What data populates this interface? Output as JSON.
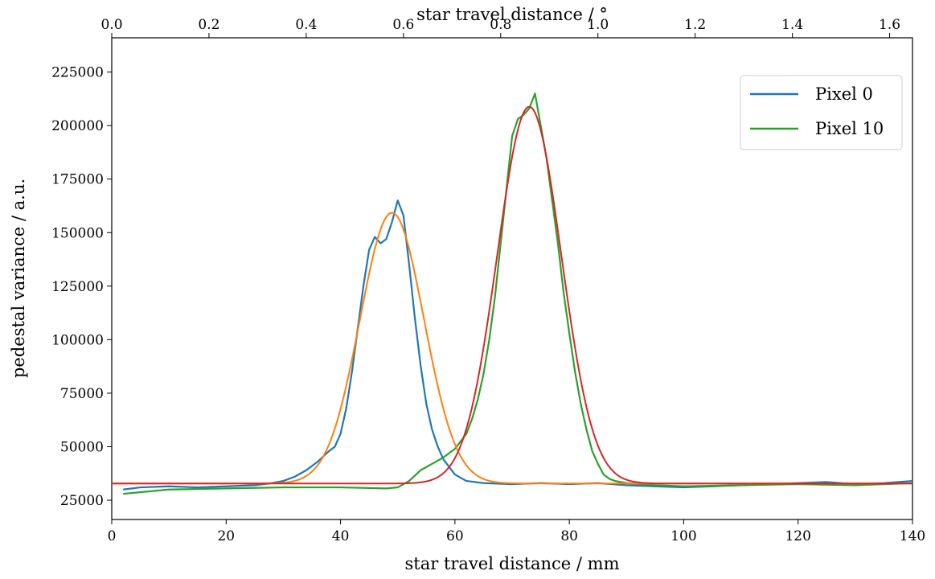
{
  "chart_data": {
    "type": "line",
    "xlabel": "star travel distance / mm",
    "x2label": "star travel distance / °",
    "ylabel": "pedestal variance / a.u.",
    "xlim": [
      0,
      140
    ],
    "x2lim": [
      0,
      1.647
    ],
    "ylim": [
      16000,
      241000
    ],
    "x_ticks": [
      0,
      20,
      40,
      60,
      80,
      100,
      120,
      140
    ],
    "x2_ticks": [
      0.0,
      0.2,
      0.4,
      0.6,
      0.8,
      1.0,
      1.2,
      1.4,
      1.6
    ],
    "y_ticks": [
      25000,
      50000,
      75000,
      100000,
      125000,
      150000,
      175000,
      200000,
      225000
    ],
    "x_tick_labels": [
      "0",
      "20",
      "40",
      "60",
      "80",
      "100",
      "120",
      "140"
    ],
    "x2_tick_labels": [
      "0.0",
      "0.2",
      "0.4",
      "0.6",
      "0.8",
      "1.0",
      "1.2",
      "1.4",
      "1.6"
    ],
    "y_tick_labels": [
      "25000",
      "50000",
      "75000",
      "100000",
      "125000",
      "150000",
      "175000",
      "200000",
      "225000"
    ],
    "grid": false,
    "legend_position": "top-right",
    "series": [
      {
        "name": "Pixel 0",
        "color": "#1f77b4",
        "x": [
          2,
          5,
          10,
          15,
          20,
          25,
          28,
          30,
          32,
          34,
          36,
          38,
          39,
          40,
          41,
          42,
          43,
          44,
          45,
          46,
          47,
          48,
          49,
          50,
          51,
          52,
          53,
          54,
          55,
          56,
          57,
          58,
          60,
          62,
          65,
          70,
          75,
          80,
          85,
          90,
          95,
          100,
          105,
          110,
          115,
          120,
          125,
          130,
          135,
          140
        ],
        "y": [
          30000,
          31000,
          31500,
          31000,
          31500,
          32000,
          33000,
          34000,
          36000,
          39000,
          43000,
          48000,
          50000,
          56000,
          68000,
          85000,
          105000,
          125000,
          142000,
          148000,
          145000,
          147000,
          155000,
          165000,
          158000,
          135000,
          110000,
          88000,
          70000,
          58000,
          50000,
          44000,
          37000,
          34000,
          33000,
          32500,
          33000,
          32500,
          33000,
          32000,
          31500,
          31000,
          31500,
          32000,
          32500,
          33000,
          33500,
          32500,
          33000,
          34000
        ]
      },
      {
        "name": "Pixel 10",
        "color": "#2ca02c",
        "x": [
          2,
          10,
          20,
          30,
          40,
          48,
          50,
          52,
          54,
          56,
          58,
          60,
          62,
          63,
          64,
          65,
          66,
          67,
          68,
          69,
          70,
          71,
          72,
          73,
          74,
          75,
          76,
          77,
          78,
          79,
          80,
          81,
          82,
          83,
          84,
          85,
          86,
          87,
          88,
          90,
          95,
          100,
          110,
          120,
          130,
          140
        ],
        "y": [
          28000,
          30000,
          30500,
          31000,
          31000,
          30500,
          31000,
          34000,
          39000,
          42000,
          45000,
          49000,
          56000,
          63000,
          72000,
          84000,
          100000,
          120000,
          145000,
          170000,
          195000,
          203000,
          205000,
          208000,
          215000,
          200000,
          185000,
          165000,
          145000,
          122000,
          103000,
          85000,
          70000,
          58000,
          48000,
          42000,
          37000,
          35000,
          34000,
          33000,
          32000,
          31500,
          32000,
          32500,
          32000,
          33000
        ]
      },
      {
        "name": "",
        "color": "#ff7f0e",
        "fit": {
          "offset": 32800,
          "amplitude": 126500,
          "mu": 49,
          "sigma": 5.6
        }
      },
      {
        "name": "",
        "color": "#d62728",
        "fit": {
          "offset": 32800,
          "amplitude": 176000,
          "mu": 73,
          "sigma": 5.6
        }
      }
    ]
  }
}
